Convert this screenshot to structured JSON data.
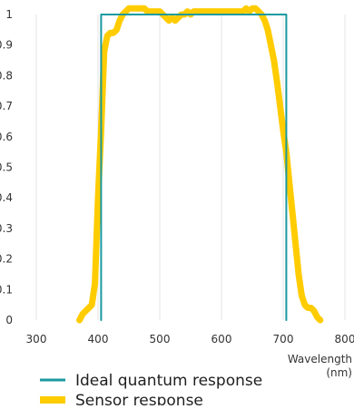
{
  "chart_data": {
    "type": "line",
    "title": "",
    "xlabel": "Wavelength (nm)",
    "xlabel_lines": [
      "Wavelength",
      "(nm)"
    ],
    "ylabel": "",
    "xlim": [
      300,
      800
    ],
    "ylim": [
      0,
      1
    ],
    "xticks": [
      300,
      400,
      500,
      600,
      700,
      800
    ],
    "yticks": [
      0,
      0.1,
      0.2,
      0.3,
      0.4,
      0.5,
      0.6,
      0.7,
      0.8,
      0.9,
      1
    ],
    "grid": "vertical",
    "legend_position": "bottom-left",
    "series": [
      {
        "name": "Ideal quantum response",
        "color": "#1a9aa0",
        "points": [
          [
            405,
            0
          ],
          [
            405,
            1.0
          ],
          [
            705,
            1.0
          ],
          [
            705,
            0
          ]
        ]
      },
      {
        "name": "Sensor response",
        "color": "#ffcc00",
        "points": [
          [
            370,
            0.0
          ],
          [
            375,
            0.02
          ],
          [
            380,
            0.03
          ],
          [
            385,
            0.04
          ],
          [
            390,
            0.05
          ],
          [
            395,
            0.12
          ],
          [
            400,
            0.4
          ],
          [
            405,
            0.62
          ],
          [
            410,
            0.88
          ],
          [
            415,
            0.93
          ],
          [
            420,
            0.94
          ],
          [
            425,
            0.94
          ],
          [
            430,
            0.95
          ],
          [
            435,
            0.98
          ],
          [
            440,
            1.0
          ],
          [
            445,
            1.01
          ],
          [
            450,
            1.02
          ],
          [
            455,
            1.02
          ],
          [
            460,
            1.02
          ],
          [
            465,
            1.02
          ],
          [
            470,
            1.02
          ],
          [
            475,
            1.02
          ],
          [
            480,
            1.01
          ],
          [
            485,
            1.01
          ],
          [
            490,
            1.01
          ],
          [
            495,
            1.01
          ],
          [
            500,
            1.01
          ],
          [
            505,
            1.0
          ],
          [
            510,
            0.99
          ],
          [
            515,
            0.98
          ],
          [
            520,
            0.99
          ],
          [
            525,
            0.98
          ],
          [
            530,
            0.99
          ],
          [
            535,
            1.0
          ],
          [
            540,
            1.0
          ],
          [
            545,
            1.01
          ],
          [
            550,
            1.0
          ],
          [
            555,
            1.01
          ],
          [
            560,
            1.01
          ],
          [
            565,
            1.01
          ],
          [
            570,
            1.01
          ],
          [
            575,
            1.01
          ],
          [
            580,
            1.01
          ],
          [
            585,
            1.01
          ],
          [
            590,
            1.01
          ],
          [
            595,
            1.01
          ],
          [
            600,
            1.01
          ],
          [
            605,
            1.01
          ],
          [
            610,
            1.01
          ],
          [
            615,
            1.01
          ],
          [
            620,
            1.01
          ],
          [
            625,
            1.01
          ],
          [
            630,
            1.01
          ],
          [
            635,
            1.01
          ],
          [
            640,
            1.02
          ],
          [
            645,
            1.01
          ],
          [
            650,
            1.02
          ],
          [
            655,
            1.02
          ],
          [
            660,
            1.01
          ],
          [
            665,
            1.0
          ],
          [
            670,
            0.98
          ],
          [
            675,
            0.95
          ],
          [
            680,
            0.9
          ],
          [
            685,
            0.85
          ],
          [
            690,
            0.78
          ],
          [
            695,
            0.7
          ],
          [
            700,
            0.62
          ],
          [
            705,
            0.55
          ],
          [
            710,
            0.45
          ],
          [
            715,
            0.35
          ],
          [
            720,
            0.25
          ],
          [
            725,
            0.15
          ],
          [
            730,
            0.08
          ],
          [
            735,
            0.05
          ],
          [
            740,
            0.04
          ],
          [
            745,
            0.04
          ],
          [
            750,
            0.03
          ],
          [
            755,
            0.01
          ],
          [
            760,
            0.0
          ]
        ]
      }
    ]
  }
}
